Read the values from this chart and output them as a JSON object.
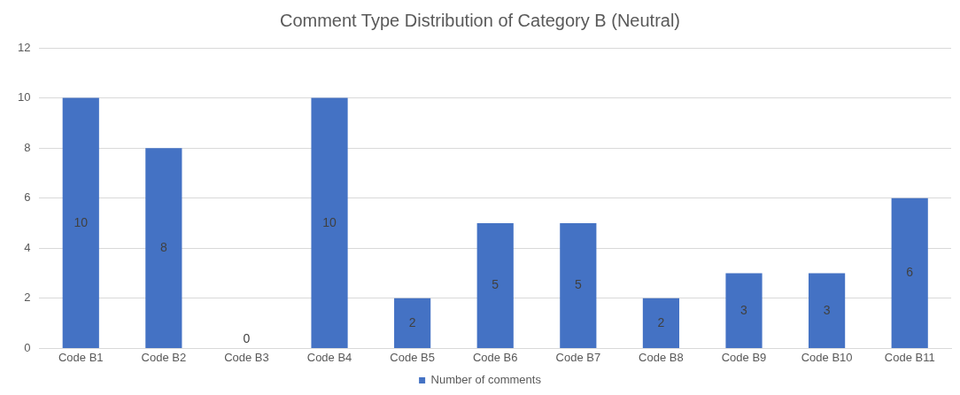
{
  "chart_data": {
    "type": "bar",
    "title": "Comment Type Distribution of Category B (Neutral)",
    "categories": [
      "Code B1",
      "Code B2",
      "Code B3",
      "Code B4",
      "Code B5",
      "Code B6",
      "Code B7",
      "Code B8",
      "Code B9",
      "Code B10",
      "Code B11"
    ],
    "series": [
      {
        "name": "Number of comments",
        "color": "#4472c4",
        "values": [
          10,
          8,
          0,
          10,
          2,
          5,
          5,
          2,
          3,
          3,
          6
        ]
      }
    ],
    "ylim": [
      0,
      12
    ],
    "yticks": [
      0,
      2,
      4,
      6,
      8,
      10,
      12
    ],
    "grid": "y",
    "legend": "bottom",
    "data_labels": true
  }
}
